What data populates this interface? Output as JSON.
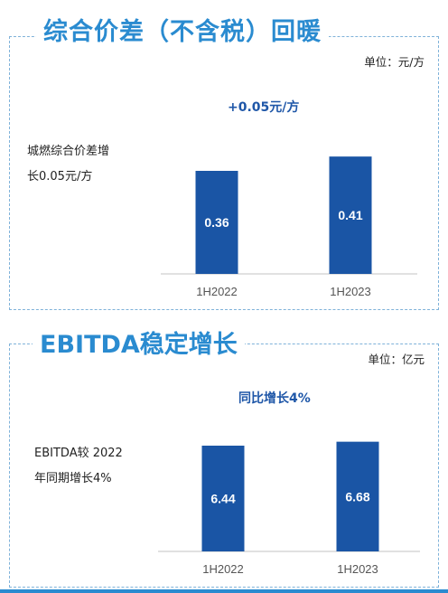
{
  "section1": {
    "title": "综合价差（不含税）回暖",
    "unit": "单位：元/方",
    "headline": "+0.05元/方",
    "note_lines": [
      "城燃综合价差增",
      "长0.05元/方"
    ]
  },
  "section2": {
    "title": "EBITDA稳定增长",
    "unit": "单位：亿元",
    "headline": "同比增长4%",
    "note_lines": [
      "EBITDA较 2022",
      "年同期增长4%"
    ]
  },
  "colors": {
    "bar": "#1a55a5",
    "title": "#2a8bd0",
    "headline": "#1f57a8",
    "axis": "#cfcfcf",
    "border": "#7fb2d9"
  },
  "chart_data": [
    {
      "type": "bar",
      "categories": [
        "1H2022",
        "1H2023"
      ],
      "values": [
        0.36,
        0.41
      ],
      "data_labels": [
        "0.36",
        "0.41"
      ]
    },
    {
      "type": "bar",
      "categories": [
        "1H2022",
        "1H2023"
      ],
      "values": [
        6.44,
        6.68
      ],
      "data_labels": [
        "6.44",
        "6.68"
      ]
    }
  ]
}
